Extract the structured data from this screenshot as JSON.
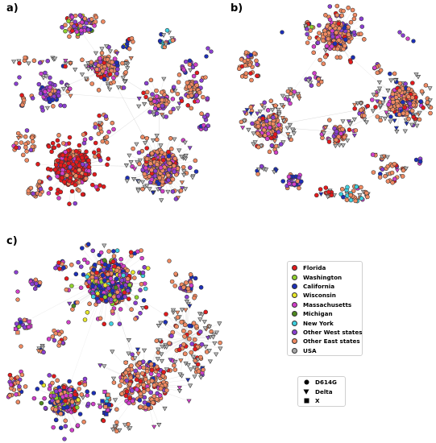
{
  "panels": [
    {
      "label": "a)"
    },
    {
      "label": "b)"
    },
    {
      "label": "c)"
    }
  ],
  "legend_states": [
    {
      "label": "Florida",
      "color": "#e41a1c"
    },
    {
      "label": "Washington",
      "color": "#8fd12e"
    },
    {
      "label": "California",
      "color": "#1c2fb8"
    },
    {
      "label": "Wisconsin",
      "color": "#e6e62a"
    },
    {
      "label": "Massachusetts",
      "color": "#d13fc9"
    },
    {
      "label": "Michigan",
      "color": "#4e8a1f"
    },
    {
      "label": "New York",
      "color": "#3fd0df"
    },
    {
      "label": "Other West states",
      "color": "#8a3fd1"
    },
    {
      "label": "Other East states",
      "color": "#ef8a62"
    },
    {
      "label": "USA",
      "color": "#a8a8a8"
    }
  ],
  "legend_variants": [
    {
      "label": "D614G",
      "marker": "circle"
    },
    {
      "label": "Delta",
      "marker": "triangle"
    },
    {
      "label": "X",
      "marker": "square"
    }
  ],
  "colors": {
    "node_edge": "#333333",
    "link": "#bbbbbb",
    "delta_fill": "#b9b9b9"
  }
}
